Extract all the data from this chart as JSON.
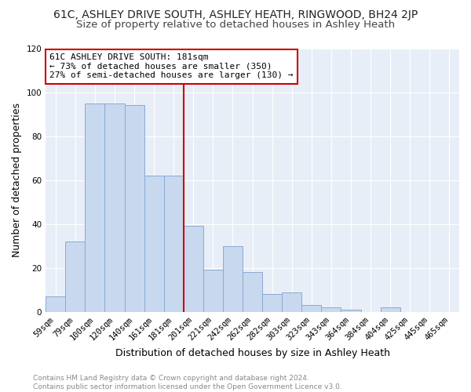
{
  "title": "61C, ASHLEY DRIVE SOUTH, ASHLEY HEATH, RINGWOOD, BH24 2JP",
  "subtitle": "Size of property relative to detached houses in Ashley Heath",
  "xlabel": "Distribution of detached houses by size in Ashley Heath",
  "ylabel": "Number of detached properties",
  "categories": [
    "59sqm",
    "79sqm",
    "100sqm",
    "120sqm",
    "140sqm",
    "161sqm",
    "181sqm",
    "201sqm",
    "221sqm",
    "242sqm",
    "262sqm",
    "282sqm",
    "303sqm",
    "323sqm",
    "343sqm",
    "364sqm",
    "384sqm",
    "404sqm",
    "425sqm",
    "445sqm",
    "465sqm"
  ],
  "values": [
    7,
    32,
    95,
    95,
    94,
    62,
    62,
    39,
    19,
    30,
    18,
    8,
    9,
    3,
    2,
    1,
    0,
    2,
    0,
    0,
    0
  ],
  "bar_color": "#c8d8ee",
  "bar_edge_color": "#8aaad4",
  "vline_x_index": 6.5,
  "vline_color": "#cc0000",
  "annotation_lines": [
    "61C ASHLEY DRIVE SOUTH: 181sqm",
    "← 73% of detached houses are smaller (350)",
    "27% of semi-detached houses are larger (130) →"
  ],
  "annotation_box_color": "#cc0000",
  "plot_bg_color": "#e8eef8",
  "grid_color": "#ffffff",
  "fig_bg_color": "#ffffff",
  "ylim": [
    0,
    120
  ],
  "yticks": [
    0,
    20,
    40,
    60,
    80,
    100,
    120
  ],
  "title_fontsize": 10,
  "subtitle_fontsize": 9.5,
  "axis_label_fontsize": 9,
  "tick_fontsize": 7.5,
  "annot_fontsize": 8,
  "footer_fontsize": 6.5,
  "footer": "Contains HM Land Registry data © Crown copyright and database right 2024.\nContains public sector information licensed under the Open Government Licence v3.0."
}
